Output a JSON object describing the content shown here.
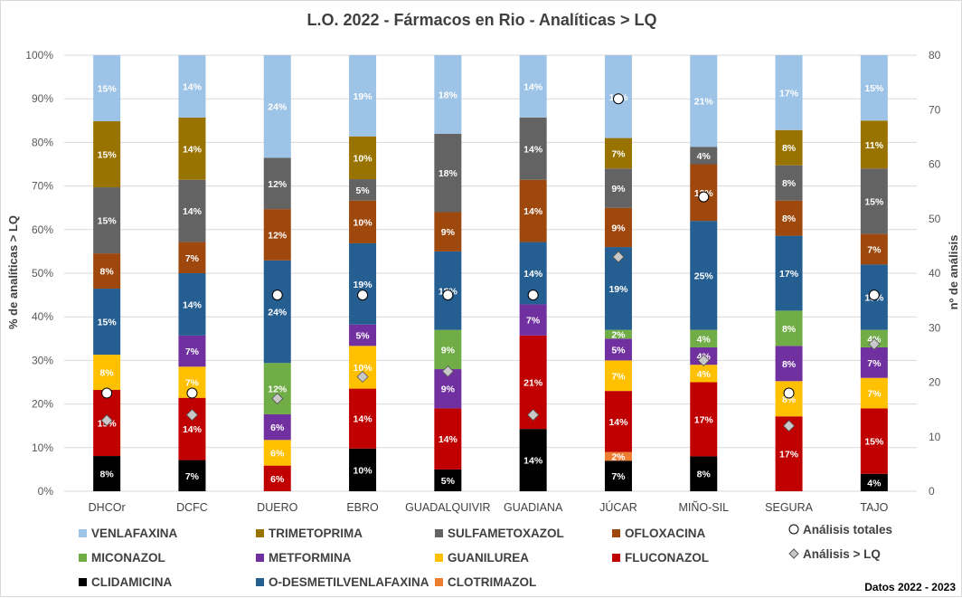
{
  "chart_data": {
    "type": "bar",
    "stacked": "percent",
    "title": "L.O. 2022 - Fármacos en Rio - Analíticas > LQ",
    "ylabel": "% de analíticas > LQ",
    "y2label": "nº de análisis",
    "ylim": [
      0,
      100
    ],
    "y2lim": [
      0,
      80
    ],
    "yticks": [
      "0%",
      "10%",
      "20%",
      "30%",
      "40%",
      "50%",
      "60%",
      "70%",
      "80%",
      "90%",
      "100%"
    ],
    "y2ticks": [
      "0",
      "10",
      "20",
      "30",
      "40",
      "50",
      "60",
      "70",
      "80"
    ],
    "grid": true,
    "legend": "bottom",
    "footer": "Datos 2022 - 2023",
    "categories": [
      "DHCOr",
      "DCFC",
      "DUERO",
      "EBRO",
      "GUADALQUIVIR",
      "GUADIANA",
      "JÚCAR",
      "MIÑO-SIL",
      "SEGURA",
      "TAJO"
    ],
    "series": [
      {
        "name": "CLIDAMICINA",
        "color": "#000000",
        "values": [
          8,
          7,
          0,
          10,
          5,
          14,
          7,
          8,
          0,
          4
        ]
      },
      {
        "name": "CLOTRIMAZOL",
        "color": "#ED7D31",
        "values": [
          0,
          0,
          0,
          0,
          0,
          0,
          2,
          0,
          0,
          0
        ]
      },
      {
        "name": "FLUCONAZOL",
        "color": "#C00000",
        "values": [
          15,
          14,
          6,
          14,
          14,
          21,
          14,
          17,
          17,
          15
        ]
      },
      {
        "name": "GUANILUREA",
        "color": "#FFC000",
        "values": [
          8,
          7,
          6,
          10,
          0,
          0,
          7,
          4,
          8,
          7
        ]
      },
      {
        "name": "METFORMINA",
        "color": "#7030A0",
        "values": [
          0,
          7,
          6,
          5,
          9,
          7,
          5,
          4,
          8,
          7
        ]
      },
      {
        "name": "MICONAZOL",
        "color": "#70AD47",
        "values": [
          0,
          0,
          12,
          0,
          9,
          0,
          2,
          4,
          8,
          4
        ]
      },
      {
        "name": "O-DESMETILVENLAFAXINA",
        "color": "#255E91",
        "values": [
          15,
          14,
          24,
          19,
          18,
          14,
          19,
          25,
          17,
          15
        ]
      },
      {
        "name": "OFLOXACINA",
        "color": "#9E480E",
        "values": [
          8,
          7,
          12,
          10,
          9,
          14,
          9,
          13,
          8,
          7
        ]
      },
      {
        "name": "SULFAMETOXAZOL",
        "color": "#636363",
        "values": [
          15,
          14,
          12,
          5,
          18,
          14,
          9,
          4,
          8,
          15
        ]
      },
      {
        "name": "TRIMETOPRIMA",
        "color": "#997300",
        "values": [
          15,
          14,
          0,
          10,
          0,
          0,
          7,
          0,
          8,
          11
        ]
      },
      {
        "name": "VENLAFAXINA",
        "color": "#9DC3E6",
        "values": [
          15,
          14,
          24,
          19,
          18,
          14,
          19,
          21,
          17,
          15
        ]
      }
    ],
    "markers": [
      {
        "name": "Análisis totales",
        "shape": "circle",
        "axis": "secondary",
        "values": [
          18,
          18,
          36,
          36,
          36,
          36,
          72,
          54,
          18,
          36
        ]
      },
      {
        "name": "Análisis > LQ",
        "shape": "diamond",
        "axis": "secondary",
        "values": [
          13,
          14,
          17,
          21,
          22,
          14,
          43,
          24,
          12,
          27
        ]
      }
    ],
    "legend_order": [
      "VENLAFAXINA",
      "TRIMETOPRIMA",
      "SULFAMETOXAZOL",
      "OFLOXACINA",
      "MICONAZOL",
      "METFORMINA",
      "GUANILUREA",
      "FLUCONAZOL",
      "CLIDAMICINA",
      "O-DESMETILVENLAFAXINA",
      "CLOTRIMAZOL"
    ]
  }
}
